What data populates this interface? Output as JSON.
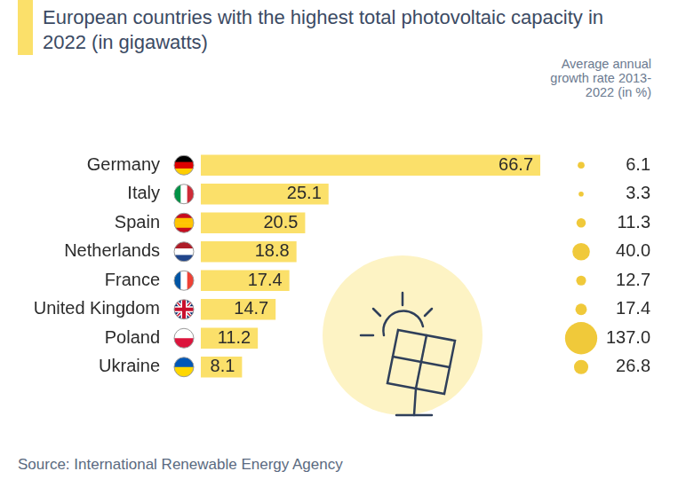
{
  "chart_data": {
    "type": "bar",
    "orientation": "horizontal",
    "title": "European countries with the highest total photovoltaic capacity in 2022 (in gigawatts)",
    "categories": [
      "Germany",
      "Italy",
      "Spain",
      "Netherlands",
      "France",
      "United Kingdom",
      "Poland",
      "Ukraine"
    ],
    "values": [
      66.7,
      25.1,
      20.5,
      18.8,
      17.4,
      14.7,
      11.2,
      8.1
    ],
    "color": "#fbe06a",
    "data_labels": true,
    "tick_labels": "y",
    "grid": false,
    "growth_rate_title": "Average annual growth rate 2013-2022 (in %)",
    "growth_rate": [
      6.1,
      3.3,
      11.3,
      40.0,
      12.7,
      17.4,
      137.0,
      26.8
    ],
    "growth_rate_labels": [
      "6.1",
      "3.3",
      "11.3",
      "40.0",
      "12.7",
      "17.4",
      "137.0",
      "26.8"
    ],
    "growth_rate_color": "#f0c93a",
    "source": "Source: International Renewable Energy Agency"
  }
}
